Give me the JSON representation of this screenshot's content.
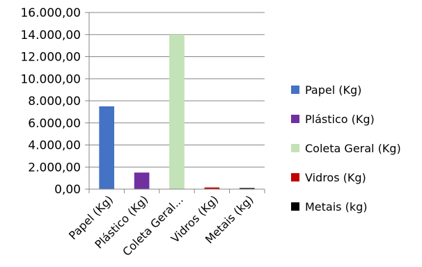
{
  "chart_data": {
    "type": "bar",
    "categories": [
      "Papel (Kg)",
      "Plástico (Kg)",
      "Coleta Geral...",
      "Vidros (Kg)",
      "Metais (kg)"
    ],
    "values": [
      7500,
      1500,
      14000,
      150,
      100
    ],
    "colors": [
      "#4472C4",
      "#7030A0",
      "#C3E2B7",
      "#C00000",
      "#000000"
    ],
    "ylim": [
      0,
      16000
    ],
    "yticks": [
      "0,00",
      "2.000,00",
      "4.000,00",
      "6.000,00",
      "8.000,00",
      "10.000,00",
      "12.000,00",
      "14.000,00",
      "16.000,00"
    ],
    "grid": true,
    "legend_position": "right",
    "legend": [
      {
        "label": "Papel (Kg)",
        "color": "#4472C4"
      },
      {
        "label": "Plástico (Kg)",
        "color": "#7030A0"
      },
      {
        "label": "Coleta Geral (Kg)",
        "color": "#C3E2B7"
      },
      {
        "label": "Vidros (Kg)",
        "color": "#C00000"
      },
      {
        "label": "Metais (kg)",
        "color": "#000000"
      }
    ]
  }
}
